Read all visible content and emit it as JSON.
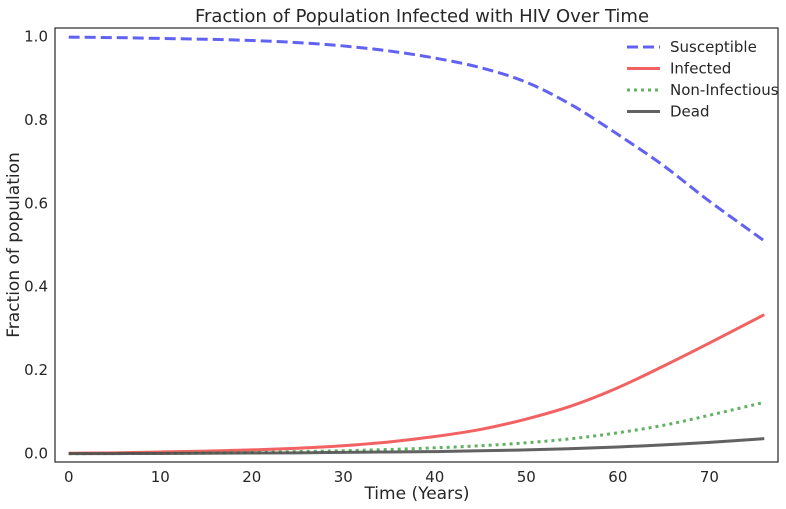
{
  "chart_data": {
    "type": "line",
    "title": "Fraction of Population Infected with HIV Over Time",
    "xlabel": "Time (Years)",
    "ylabel": "Fraction of population",
    "xlim": [
      -1.5,
      77.5
    ],
    "ylim": [
      -0.02,
      1.02
    ],
    "xticks": [
      0,
      10,
      20,
      30,
      40,
      50,
      60,
      70
    ],
    "yticks": [
      0.0,
      0.2,
      0.4,
      0.6,
      0.8,
      1.0
    ],
    "xtick_labels": [
      "0",
      "10",
      "20",
      "30",
      "40",
      "50",
      "60",
      "70"
    ],
    "ytick_labels": [
      "0.0",
      "0.2",
      "0.4",
      "0.6",
      "0.8",
      "1.0"
    ],
    "grid": false,
    "legend_position": "top-right",
    "x": [
      0,
      5,
      10,
      15,
      20,
      25,
      30,
      35,
      40,
      45,
      50,
      55,
      60,
      65,
      70,
      76
    ],
    "series": [
      {
        "name": "Susceptible",
        "color": "#4c4cf0",
        "style": "dashed",
        "values": [
          0.998,
          0.997,
          0.995,
          0.993,
          0.99,
          0.985,
          0.977,
          0.965,
          0.948,
          0.925,
          0.89,
          0.835,
          0.765,
          0.69,
          0.605,
          0.51
        ]
      },
      {
        "name": "Infected",
        "color": "#f04c4c",
        "style": "solid",
        "values": [
          0.001,
          0.002,
          0.004,
          0.006,
          0.009,
          0.013,
          0.019,
          0.028,
          0.041,
          0.058,
          0.083,
          0.115,
          0.158,
          0.21,
          0.265,
          0.333
        ]
      },
      {
        "name": "Non-Infectious",
        "color": "#4ca64c",
        "style": "dotted",
        "values": [
          0.0,
          0.0005,
          0.001,
          0.002,
          0.003,
          0.005,
          0.007,
          0.01,
          0.014,
          0.019,
          0.026,
          0.036,
          0.05,
          0.068,
          0.092,
          0.123
        ]
      },
      {
        "name": "Dead",
        "color": "#4c4c4c",
        "style": "solid",
        "values": [
          0.0,
          0.0002,
          0.0005,
          0.001,
          0.0015,
          0.002,
          0.003,
          0.004,
          0.005,
          0.007,
          0.009,
          0.012,
          0.016,
          0.021,
          0.027,
          0.036
        ]
      }
    ]
  }
}
